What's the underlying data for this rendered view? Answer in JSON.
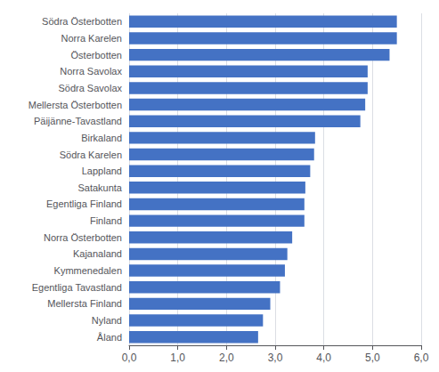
{
  "chart_data": {
    "type": "bar",
    "orientation": "horizontal",
    "categories": [
      "Åland",
      "Nyland",
      "Mellersta Finland",
      "Egentliga Tavastland",
      "Kymmenedalen",
      "Kajanaland",
      "Norra Österbotten",
      "Finland",
      "Egentliga Finland",
      "Satakunta",
      "Lappland",
      "Södra Karelen",
      "Birkaland",
      "Päijänne-Tavastland",
      "Mellersta Österbotten",
      "Södra Savolax",
      "Norra Savolax",
      "Österbotten",
      "Norra Karelen",
      "Södra Österbotten"
    ],
    "values": [
      2.65,
      2.75,
      2.9,
      3.1,
      3.2,
      3.25,
      3.35,
      3.6,
      3.6,
      3.62,
      3.72,
      3.8,
      3.82,
      4.75,
      4.85,
      4.9,
      4.9,
      5.35,
      5.5,
      5.5
    ],
    "color": "#4472C4",
    "xlim": [
      0,
      6.0
    ],
    "xticks": [
      {
        "value": 0.0,
        "label": "0,0"
      },
      {
        "value": 1.0,
        "label": "1,0"
      },
      {
        "value": 2.0,
        "label": "2,0"
      },
      {
        "value": 3.0,
        "label": "3,0"
      },
      {
        "value": 4.0,
        "label": "4,0"
      },
      {
        "value": 5.0,
        "label": "5,0"
      },
      {
        "value": 6.0,
        "label": "6,0"
      }
    ],
    "grid": true
  }
}
